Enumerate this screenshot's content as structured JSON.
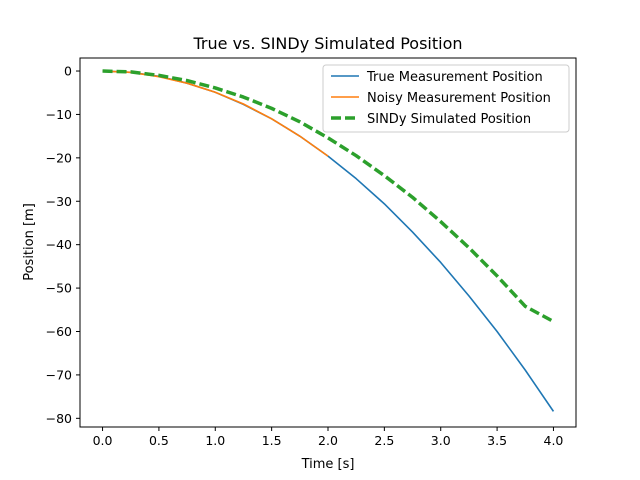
{
  "chart_data": {
    "type": "line",
    "title": "True vs. SINDy Simulated Position",
    "xlabel": "Time [s]",
    "ylabel": "Position [m]",
    "xlim": [
      -0.2,
      4.2
    ],
    "ylim": [
      -82,
      3
    ],
    "xticks": [
      0.0,
      0.5,
      1.0,
      1.5,
      2.0,
      2.5,
      3.0,
      3.5,
      4.0
    ],
    "xtick_labels": [
      "0.0",
      "0.5",
      "1.0",
      "1.5",
      "2.0",
      "2.5",
      "3.0",
      "3.5",
      "4.0"
    ],
    "yticks": [
      0,
      -10,
      -20,
      -30,
      -40,
      -50,
      -60,
      -70,
      -80
    ],
    "ytick_labels": [
      "0",
      "−10",
      "−20",
      "−30",
      "−40",
      "−50",
      "−60",
      "−70",
      "−80"
    ],
    "grid": false,
    "legend_position": "top-right",
    "series": [
      {
        "name": "True Measurement Position",
        "color": "#1f77b4",
        "style": "solid",
        "x": [
          0.0,
          0.25,
          0.5,
          0.75,
          1.0,
          1.25,
          1.5,
          1.75,
          2.0,
          2.25,
          2.5,
          2.75,
          3.0,
          3.25,
          3.5,
          3.75,
          4.0
        ],
        "y": [
          0.0,
          -0.3,
          -1.2,
          -2.8,
          -4.9,
          -7.7,
          -11.0,
          -15.0,
          -19.6,
          -24.8,
          -30.6,
          -37.1,
          -44.1,
          -51.8,
          -60.0,
          -68.9,
          -78.4
        ]
      },
      {
        "name": "Noisy Measurement Position",
        "color": "#ff7f0e",
        "style": "solid",
        "x": [
          0.0,
          0.25,
          0.5,
          0.75,
          1.0,
          1.25,
          1.5,
          1.75,
          2.0
        ],
        "y": [
          0.0,
          -0.3,
          -1.3,
          -2.8,
          -4.9,
          -7.6,
          -11.0,
          -15.0,
          -19.6
        ]
      },
      {
        "name": "SINDy Simulated Position",
        "color": "#2ca02c",
        "style": "dashed",
        "x": [
          0.0,
          0.25,
          0.5,
          0.75,
          1.0,
          1.25,
          1.5,
          1.75,
          2.0,
          2.25,
          2.5,
          2.75,
          3.0,
          3.25,
          3.5,
          3.75,
          4.0
        ],
        "y": [
          0.0,
          -0.2,
          -1.0,
          -2.2,
          -3.9,
          -6.0,
          -8.6,
          -11.7,
          -15.4,
          -19.5,
          -24.1,
          -29.1,
          -34.7,
          -40.7,
          -47.2,
          -54.2,
          -57.7
        ]
      }
    ]
  }
}
